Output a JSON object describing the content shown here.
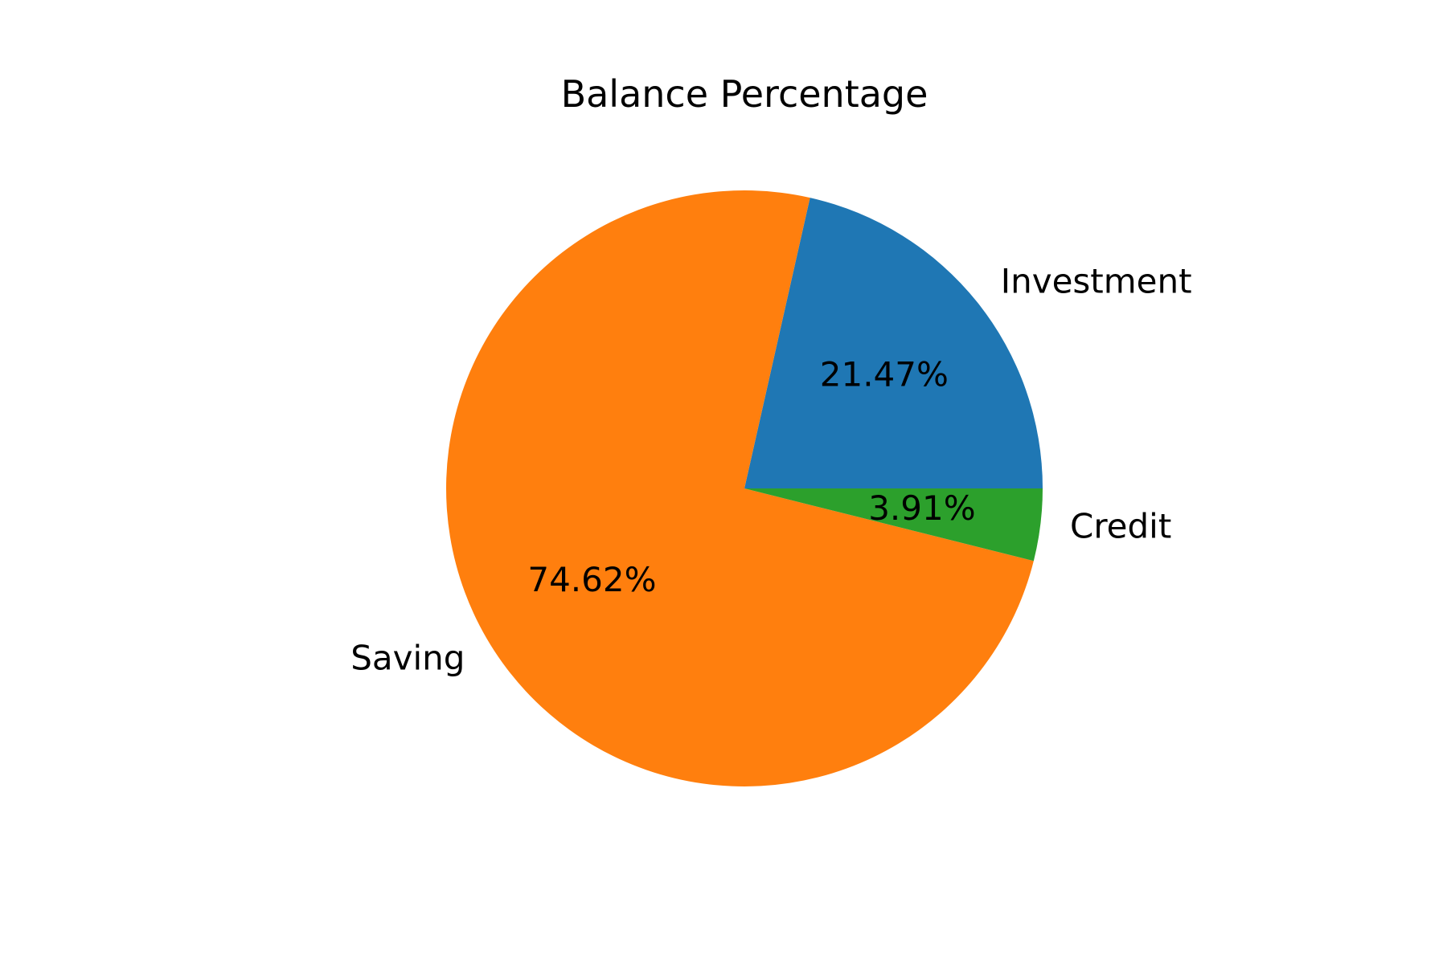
{
  "chart_data": {
    "type": "pie",
    "title": "Balance Percentage",
    "legend": "none",
    "slices": [
      {
        "label": "Investment",
        "value": 21.47,
        "pct_label": "21.47%",
        "color": "#1f77b4"
      },
      {
        "label": "Saving",
        "value": 74.62,
        "pct_label": "74.62%",
        "color": "#ff7f0e"
      },
      {
        "label": "Credit",
        "value": 3.91,
        "pct_label": "3.91%",
        "color": "#2ca02c"
      }
    ]
  }
}
